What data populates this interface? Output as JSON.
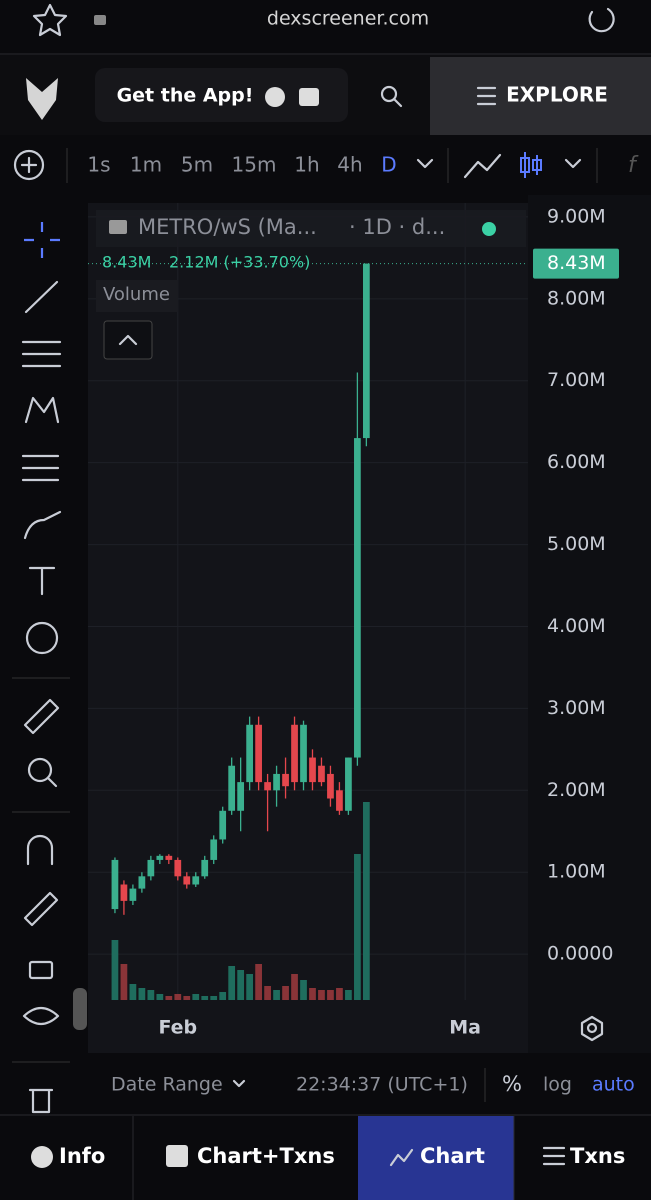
{
  "browser": {
    "url": "dexscreener.com"
  },
  "header": {
    "get_app": "Get the App!",
    "explore": "EXPLORE"
  },
  "timeframes": [
    "1s",
    "1m",
    "5m",
    "15m",
    "1h",
    "4h",
    "D"
  ],
  "legend": {
    "symbol": "METRO/wS (Ma...",
    "interval": "· 1D · d...",
    "last": "8.43M",
    "change": "2.12M (+33.70%)",
    "volume": "Volume"
  },
  "chart": {
    "type": "candlestick",
    "up_color": "#3bb08f",
    "down_color": "#e5474d",
    "up_volume_color": "#1f6d5e",
    "down_volume_color": "#8a3438",
    "ylim": [
      -560000,
      9170000
    ],
    "yticks": [
      {
        "value": 9000000,
        "label": "9.00M"
      },
      {
        "value": 8000000,
        "label": "8.00M"
      },
      {
        "value": 7000000,
        "label": "7.00M"
      },
      {
        "value": 6000000,
        "label": "6.00M"
      },
      {
        "value": 5000000,
        "label": "5.00M"
      },
      {
        "value": 4000000,
        "label": "4.00M"
      },
      {
        "value": 3000000,
        "label": "3.00M"
      },
      {
        "value": 2000000,
        "label": "2.00M"
      },
      {
        "value": 1000000,
        "label": "1.00M"
      },
      {
        "value": 0,
        "label": "0.0000"
      }
    ],
    "last_price": {
      "value": 8430000,
      "label": "8.43M"
    },
    "xlim": [
      -3,
      46
    ],
    "xticks": [
      {
        "value": 7,
        "label": "Feb"
      },
      {
        "value": 39,
        "label": "Ma"
      }
    ],
    "volume_lim": [
      0,
      100
    ],
    "candles": [
      {
        "open": 550000,
        "high": 1180000,
        "low": 500000,
        "close": 1150000,
        "volume": 30
      },
      {
        "open": 850000,
        "high": 900000,
        "low": 480000,
        "close": 650000,
        "volume": 18
      },
      {
        "open": 650000,
        "high": 850000,
        "low": 600000,
        "close": 800000,
        "volume": 8
      },
      {
        "open": 800000,
        "high": 1000000,
        "low": 750000,
        "close": 950000,
        "volume": 6
      },
      {
        "open": 950000,
        "high": 1200000,
        "low": 900000,
        "close": 1150000,
        "volume": 5
      },
      {
        "open": 1150000,
        "high": 1220000,
        "low": 1100000,
        "close": 1200000,
        "volume": 3
      },
      {
        "open": 1200000,
        "high": 1220000,
        "low": 1100000,
        "close": 1150000,
        "volume": 2
      },
      {
        "open": 1150000,
        "high": 1180000,
        "low": 900000,
        "close": 950000,
        "volume": 3
      },
      {
        "open": 950000,
        "high": 1000000,
        "low": 800000,
        "close": 850000,
        "volume": 2
      },
      {
        "open": 850000,
        "high": 1000000,
        "low": 820000,
        "close": 950000,
        "volume": 3
      },
      {
        "open": 950000,
        "high": 1200000,
        "low": 920000,
        "close": 1150000,
        "volume": 2
      },
      {
        "open": 1150000,
        "high": 1450000,
        "low": 1100000,
        "close": 1400000,
        "volume": 2
      },
      {
        "open": 1400000,
        "high": 1800000,
        "low": 1350000,
        "close": 1750000,
        "volume": 4
      },
      {
        "open": 1750000,
        "high": 2400000,
        "low": 1700000,
        "close": 2300000,
        "volume": 17
      },
      {
        "open": 1750000,
        "high": 2400000,
        "low": 1500000,
        "close": 2100000,
        "volume": 15
      },
      {
        "open": 2100000,
        "high": 2900000,
        "low": 2000000,
        "close": 2800000,
        "volume": 13
      },
      {
        "open": 2800000,
        "high": 2900000,
        "low": 2000000,
        "close": 2100000,
        "volume": 18
      },
      {
        "open": 2100000,
        "high": 2200000,
        "low": 1500000,
        "close": 2000000,
        "volume": 7
      },
      {
        "open": 2000000,
        "high": 2300000,
        "low": 1800000,
        "close": 2200000,
        "volume": 5
      },
      {
        "open": 2200000,
        "high": 2400000,
        "low": 1900000,
        "close": 2050000,
        "volume": 7
      },
      {
        "open": 2800000,
        "high": 2900000,
        "low": 2000000,
        "close": 2100000,
        "volume": 13
      },
      {
        "open": 2100000,
        "high": 2850000,
        "low": 2000000,
        "close": 2800000,
        "volume": 10
      },
      {
        "open": 2400000,
        "high": 2500000,
        "low": 2000000,
        "close": 2100000,
        "volume": 6
      },
      {
        "open": 2300000,
        "high": 2400000,
        "low": 2050000,
        "close": 2100000,
        "volume": 5
      },
      {
        "open": 2200000,
        "high": 2300000,
        "low": 1800000,
        "close": 1900000,
        "volume": 5
      },
      {
        "open": 2000000,
        "high": 2100000,
        "low": 1700000,
        "close": 1750000,
        "volume": 6
      },
      {
        "open": 1750000,
        "high": 2400000,
        "low": 1700000,
        "close": 2400000,
        "volume": 5
      },
      {
        "open": 2400000,
        "high": 7100000,
        "low": 2300000,
        "close": 6300000,
        "volume": 73
      },
      {
        "open": 6300000,
        "high": 8430000,
        "low": 6200000,
        "close": 8430000,
        "volume": 99
      }
    ]
  },
  "footer": {
    "date_range": "Date Range",
    "time": "22:34:37 (UTC+1)",
    "percent": "%",
    "log": "log",
    "auto": "auto"
  },
  "tabs": [
    "Info",
    "Chart+Txns",
    "Chart",
    "Txns"
  ]
}
